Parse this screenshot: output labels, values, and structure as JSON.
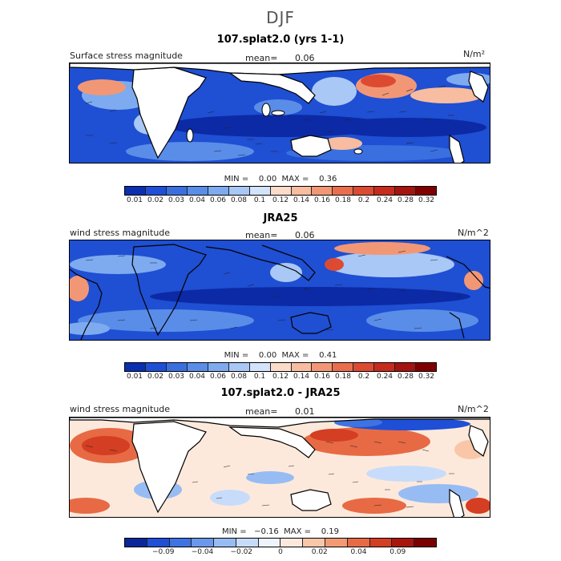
{
  "title": "DJF",
  "panels": [
    {
      "title": "107.splat2.0 (yrs 1-1)",
      "left_label": "Surface stress magnitude",
      "mean_label": "mean=",
      "mean_value": "0.06",
      "units": "N/m²",
      "min_max": "MIN =    0.00  MAX =    0.36",
      "colorbar": {
        "colors": [
          "#0a2fb0",
          "#1e4fd6",
          "#3a6fe0",
          "#5a8de8",
          "#7eaaf0",
          "#a9c8f6",
          "#d3e3fb",
          "#fbdcc8",
          "#f8bca0",
          "#f29776",
          "#ea6e4e",
          "#dd4a32",
          "#c72b1e",
          "#a5140f",
          "#800000"
        ],
        "tick_labels": [
          "0.01",
          "0.02",
          "0.03",
          "0.04",
          "0.06",
          "0.08",
          "0.1",
          "0.12",
          "0.14",
          "0.16",
          "0.18",
          "0.2",
          "0.24",
          "0.28",
          "0.32"
        ]
      }
    },
    {
      "title": "JRA25",
      "left_label": "wind stress magnitude",
      "mean_label": "mean=",
      "mean_value": "0.06",
      "units": "N/m^2",
      "min_max": "MIN =    0.00  MAX =    0.41",
      "colorbar": {
        "colors": [
          "#0a2fb0",
          "#1e4fd6",
          "#3a6fe0",
          "#5a8de8",
          "#7eaaf0",
          "#a9c8f6",
          "#d3e3fb",
          "#fbdcc8",
          "#f8bca0",
          "#f29776",
          "#ea6e4e",
          "#dd4a32",
          "#c72b1e",
          "#a5140f",
          "#800000"
        ],
        "tick_labels": [
          "0.01",
          "0.02",
          "0.03",
          "0.04",
          "0.06",
          "0.08",
          "0.1",
          "0.12",
          "0.14",
          "0.16",
          "0.18",
          "0.2",
          "0.24",
          "0.28",
          "0.32"
        ]
      }
    },
    {
      "title": "107.splat2.0 - JRA25",
      "left_label": "wind stress magnitude",
      "mean_label": "mean=",
      "mean_value": "0.01",
      "units": "N/m^2",
      "min_max": "MIN =   −0.16  MAX =    0.19",
      "colorbar": {
        "colors": [
          "#08289a",
          "#1e4fd6",
          "#3f73e2",
          "#6a98ec",
          "#97bcf4",
          "#c7dcfa",
          "#eef4fd",
          "#fde9dc",
          "#f9c6a8",
          "#f29a74",
          "#e76a45",
          "#d43e22",
          "#a8150d",
          "#7a0000"
        ],
        "tick_labels": [
          "−0.09",
          "−0.04",
          "−0.02",
          "0",
          "0.02",
          "0.04",
          "0.09"
        ]
      }
    }
  ]
}
